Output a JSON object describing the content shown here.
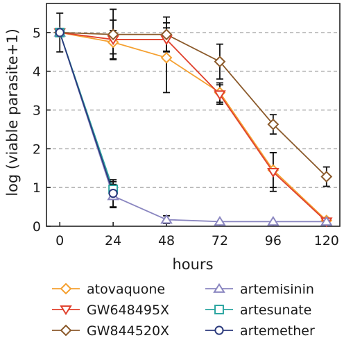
{
  "chart_data": {
    "type": "line",
    "xlabel": "hours",
    "ylabel": "log (viable parasite+1)",
    "x": [
      0,
      24,
      48,
      72,
      96,
      120
    ],
    "xticks": [
      "0",
      "24",
      "48",
      "72",
      "96",
      "120"
    ],
    "yticks": [
      "0",
      "1",
      "2",
      "3",
      "4",
      "5"
    ],
    "xlim": [
      -6,
      126
    ],
    "ylim": [
      0,
      5.75
    ],
    "grid": "horizontal dashed",
    "legend_position": "below plot",
    "series": [
      {
        "name": "atovaquone",
        "color": "#F5A030",
        "marker": "diamond",
        "x": [
          0,
          24,
          48,
          72,
          96,
          120
        ],
        "y": [
          5.0,
          4.75,
          4.35,
          3.45,
          1.45,
          0.15
        ],
        "err": [
          0,
          0.3,
          0.9,
          0.25,
          0.45,
          0.05
        ]
      },
      {
        "name": "GW648495X",
        "color": "#E0402C",
        "marker": "triangle-down",
        "x": [
          0,
          24,
          48,
          72,
          96,
          120
        ],
        "y": [
          5.0,
          4.82,
          4.82,
          3.4,
          1.4,
          0.12
        ],
        "err": [
          0,
          0.5,
          0.3,
          0.25,
          0.5,
          0.05
        ]
      },
      {
        "name": "GW844520X",
        "color": "#8B5A2B",
        "marker": "diamond",
        "x": [
          0,
          24,
          48,
          72,
          96,
          120
        ],
        "y": [
          5.0,
          4.95,
          4.95,
          4.25,
          2.63,
          1.28
        ],
        "err": [
          0.5,
          0.65,
          0.45,
          0.45,
          0.25,
          0.25
        ]
      },
      {
        "name": "artemisinin",
        "color": "#8A86C0",
        "marker": "triangle-up",
        "x": [
          0,
          24,
          48,
          72,
          96,
          120
        ],
        "y": [
          5.0,
          0.78,
          0.17,
          0.12,
          0.12,
          0.12
        ],
        "err": [
          0,
          0.3,
          0.1,
          0,
          0,
          0
        ]
      },
      {
        "name": "artesunate",
        "color": "#2AA5A0",
        "marker": "square",
        "x": [
          0,
          24
        ],
        "y": [
          5.0,
          0.95
        ],
        "err": [
          0,
          0.2
        ]
      },
      {
        "name": "artemether",
        "color": "#2B3A7C",
        "marker": "circle",
        "x": [
          0,
          24
        ],
        "y": [
          5.0,
          0.85
        ],
        "err": [
          0,
          0.35
        ]
      }
    ]
  }
}
